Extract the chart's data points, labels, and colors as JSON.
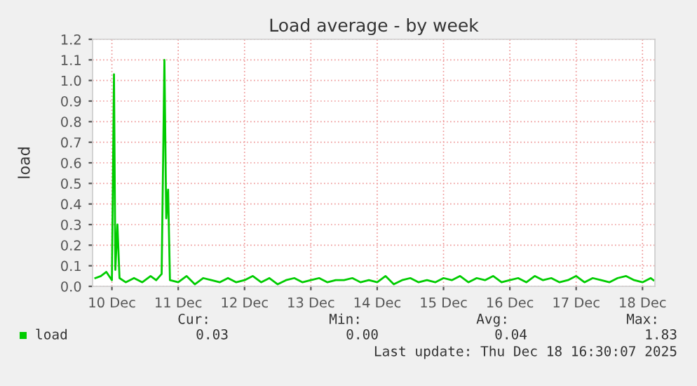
{
  "chart_data": {
    "type": "line",
    "title": "Load average - by week",
    "ylabel": "load",
    "x": [
      "2025-12-09T18:00",
      "2025-12-09T20:00",
      "2025-12-09T22:00",
      "2025-12-10T00:00",
      "2025-12-10T00:45",
      "2025-12-10T01:15",
      "2025-12-10T02:00",
      "2025-12-10T02:45",
      "2025-12-10T05:00",
      "2025-12-10T08:00",
      "2025-12-10T11:00",
      "2025-12-10T14:00",
      "2025-12-10T16:00",
      "2025-12-10T18:00",
      "2025-12-10T19:00",
      "2025-12-10T19:40",
      "2025-12-10T20:20",
      "2025-12-10T21:00",
      "2025-12-11T00:00",
      "2025-12-11T03:00",
      "2025-12-11T06:00",
      "2025-12-11T09:00",
      "2025-12-11T12:00",
      "2025-12-11T15:00",
      "2025-12-11T18:00",
      "2025-12-11T21:00",
      "2025-12-12T00:00",
      "2025-12-12T03:00",
      "2025-12-12T06:00",
      "2025-12-12T09:00",
      "2025-12-12T12:00",
      "2025-12-12T15:00",
      "2025-12-12T18:00",
      "2025-12-12T21:00",
      "2025-12-13T00:00",
      "2025-12-13T03:00",
      "2025-12-13T06:00",
      "2025-12-13T09:00",
      "2025-12-13T12:00",
      "2025-12-13T15:00",
      "2025-12-13T18:00",
      "2025-12-13T21:00",
      "2025-12-14T00:00",
      "2025-12-14T03:00",
      "2025-12-14T06:00",
      "2025-12-14T09:00",
      "2025-12-14T12:00",
      "2025-12-14T15:00",
      "2025-12-14T18:00",
      "2025-12-14T21:00",
      "2025-12-15T00:00",
      "2025-12-15T03:00",
      "2025-12-15T06:00",
      "2025-12-15T09:00",
      "2025-12-15T12:00",
      "2025-12-15T15:00",
      "2025-12-15T18:00",
      "2025-12-15T21:00",
      "2025-12-16T00:00",
      "2025-12-16T03:00",
      "2025-12-16T06:00",
      "2025-12-16T09:00",
      "2025-12-16T12:00",
      "2025-12-16T15:00",
      "2025-12-16T18:00",
      "2025-12-16T21:00",
      "2025-12-17T00:00",
      "2025-12-17T03:00",
      "2025-12-17T06:00",
      "2025-12-17T09:00",
      "2025-12-17T12:00",
      "2025-12-17T15:00",
      "2025-12-17T18:00",
      "2025-12-17T21:00",
      "2025-12-18T00:00",
      "2025-12-18T03:00",
      "2025-12-18T04:00"
    ],
    "series": [
      {
        "name": "load",
        "color": "#00cc00",
        "values": [
          0.04,
          0.05,
          0.07,
          0.03,
          1.03,
          0.08,
          0.3,
          0.04,
          0.02,
          0.04,
          0.02,
          0.05,
          0.03,
          0.06,
          1.1,
          0.33,
          0.47,
          0.03,
          0.02,
          0.05,
          0.01,
          0.04,
          0.03,
          0.02,
          0.04,
          0.02,
          0.03,
          0.05,
          0.02,
          0.04,
          0.01,
          0.03,
          0.04,
          0.02,
          0.03,
          0.04,
          0.02,
          0.03,
          0.03,
          0.04,
          0.02,
          0.03,
          0.02,
          0.05,
          0.01,
          0.03,
          0.04,
          0.02,
          0.03,
          0.02,
          0.04,
          0.03,
          0.05,
          0.02,
          0.04,
          0.03,
          0.05,
          0.02,
          0.03,
          0.04,
          0.02,
          0.05,
          0.03,
          0.04,
          0.02,
          0.03,
          0.05,
          0.02,
          0.04,
          0.03,
          0.02,
          0.04,
          0.05,
          0.03,
          0.02,
          0.04,
          0.03
        ]
      }
    ],
    "xlim": [
      "2025-12-09T17:00",
      "2025-12-18T04:30"
    ],
    "xticks": [
      {
        "value": "2025-12-10",
        "label": "10 Dec"
      },
      {
        "value": "2025-12-11",
        "label": "11 Dec"
      },
      {
        "value": "2025-12-12",
        "label": "12 Dec"
      },
      {
        "value": "2025-12-13",
        "label": "13 Dec"
      },
      {
        "value": "2025-12-14",
        "label": "14 Dec"
      },
      {
        "value": "2025-12-15",
        "label": "15 Dec"
      },
      {
        "value": "2025-12-16",
        "label": "16 Dec"
      },
      {
        "value": "2025-12-17",
        "label": "17 Dec"
      },
      {
        "value": "2025-12-18",
        "label": "18 Dec"
      }
    ],
    "ylim": [
      0,
      1.2
    ],
    "yticks": [
      {
        "value": 0,
        "label": "0.0"
      },
      {
        "value": 0.1,
        "label": "0.1"
      },
      {
        "value": 0.2,
        "label": "0.2"
      },
      {
        "value": 0.3,
        "label": "0.3"
      },
      {
        "value": 0.4,
        "label": "0.4"
      },
      {
        "value": 0.5,
        "label": "0.5"
      },
      {
        "value": 0.6,
        "label": "0.6"
      },
      {
        "value": 0.7,
        "label": "0.7"
      },
      {
        "value": 0.8,
        "label": "0.8"
      },
      {
        "value": 0.9,
        "label": "0.9"
      },
      {
        "value": 1.0,
        "label": "1.0"
      },
      {
        "value": 1.1,
        "label": "1.1"
      },
      {
        "value": 1.2,
        "label": "1.2"
      }
    ],
    "grid": true,
    "legend": "bottom left",
    "annotations": [
      "Cur:",
      "Min:",
      "Avg:",
      "Max:",
      "0.03",
      "0.00",
      "0.04",
      "1.83",
      "Last update: Thu Dec 18 16:30:07 2025"
    ]
  }
}
